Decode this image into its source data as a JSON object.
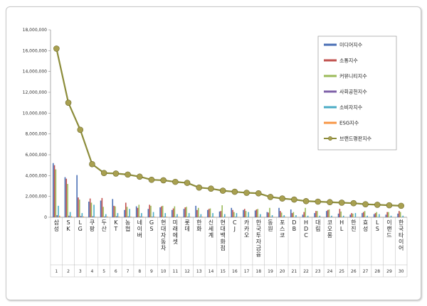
{
  "chart_data": {
    "type": "bar",
    "categories": [
      "삼성",
      "SK",
      "LG",
      "쿠팡",
      "두산",
      "KT",
      "농협",
      "네이버",
      "GS",
      "현대자동차",
      "미래에셋",
      "롯데",
      "한화",
      "신세계",
      "현대백화점",
      "CJ",
      "카카오",
      "한국투자금융",
      "동원",
      "포스코",
      "DB",
      "HDC",
      "대림",
      "코오롱",
      "HL",
      "한진",
      "효성",
      "LS",
      "이랜드",
      "한국타이어"
    ],
    "ranks": [
      "1",
      "2",
      "3",
      "4",
      "5",
      "6",
      "7",
      "8",
      "9",
      "10",
      "11",
      "12",
      "13",
      "14",
      "15",
      "16",
      "17",
      "18",
      "19",
      "20",
      "21",
      "22",
      "23",
      "24",
      "25",
      "26",
      "27",
      "28",
      "29",
      "30"
    ],
    "series": [
      {
        "name": "미디어지수",
        "color": "#4a6fb5",
        "values": [
          5200000,
          3850000,
          4050000,
          1500000,
          1600000,
          1750000,
          700000,
          1050000,
          800000,
          950000,
          700000,
          800000,
          1100000,
          700000,
          550000,
          900000,
          700000,
          650000,
          500000,
          900000,
          750000,
          250000,
          400000,
          600000,
          350000,
          250000,
          400000,
          300000,
          250000,
          350000
        ]
      },
      {
        "name": "소통지수",
        "color": "#c0504d",
        "values": [
          5000000,
          3700000,
          1900000,
          1800000,
          1850000,
          1100000,
          1400000,
          900000,
          1200000,
          1050000,
          850000,
          950000,
          700000,
          800000,
          600000,
          700000,
          800000,
          750000,
          450000,
          600000,
          400000,
          500000,
          600000,
          700000,
          800000,
          400000,
          500000,
          400000,
          500000,
          600000
        ]
      },
      {
        "name": "커뮤니티지수",
        "color": "#9bbb59",
        "values": [
          4600000,
          3200000,
          1700000,
          1400000,
          1000000,
          1050000,
          1000000,
          1200000,
          1100000,
          1100000,
          1050000,
          1000000,
          900000,
          850000,
          1150000,
          500000,
          600000,
          800000,
          900000,
          450000,
          500000,
          900000,
          600000,
          750000,
          550000,
          350000,
          600000,
          500000,
          500000,
          500000
        ]
      },
      {
        "name": "사회공헌지수",
        "color": "#7f62a8",
        "values": [
          200000,
          150000,
          120000,
          100000,
          80000,
          100000,
          90000,
          80000,
          60000,
          60000,
          50000,
          60000,
          50000,
          40000,
          40000,
          50000,
          30000,
          40000,
          40000,
          50000,
          30000,
          30000,
          30000,
          30000,
          30000,
          20000,
          30000,
          20000,
          20000,
          20000
        ]
      },
      {
        "name": "소비자지수",
        "color": "#4bacc6",
        "values": [
          1100000,
          500000,
          400000,
          1200000,
          300000,
          400000,
          800000,
          400000,
          500000,
          400000,
          300000,
          400000,
          300000,
          400000,
          300000,
          400000,
          500000,
          300000,
          200000,
          200000,
          200000,
          150000,
          150000,
          150000,
          150000,
          400000,
          150000,
          300000,
          150000,
          150000
        ]
      },
      {
        "name": "ESG지수",
        "color": "#f79646",
        "values": [
          150000,
          100000,
          80000,
          50000,
          80000,
          70000,
          60000,
          60000,
          60000,
          60000,
          50000,
          50000,
          60000,
          50000,
          40000,
          40000,
          30000,
          40000,
          40000,
          50000,
          30000,
          30000,
          30000,
          30000,
          30000,
          20000,
          30000,
          30000,
          20000,
          20000
        ]
      }
    ],
    "line_series": {
      "name": "브랜드평판지수",
      "color": "#8c8c3a",
      "marker_color": "#a8a050",
      "values": [
        16200000,
        11000000,
        8400000,
        5100000,
        4250000,
        4200000,
        4100000,
        3900000,
        3600000,
        3550000,
        3400000,
        3300000,
        2850000,
        2750000,
        2550000,
        2450000,
        2350000,
        2300000,
        1950000,
        1800000,
        1700000,
        1550000,
        1500000,
        1450000,
        1400000,
        1350000,
        1250000,
        1200000,
        1150000,
        1100000
      ]
    },
    "yticks": [
      "0",
      "2,000,000",
      "4,000,000",
      "6,000,000",
      "8,000,000",
      "10,000,000",
      "12,000,000",
      "14,000,000",
      "16,000,000",
      "18,000,000"
    ],
    "ylim": [
      0,
      18000000
    ],
    "grid": false,
    "legend_position": "top-right"
  }
}
